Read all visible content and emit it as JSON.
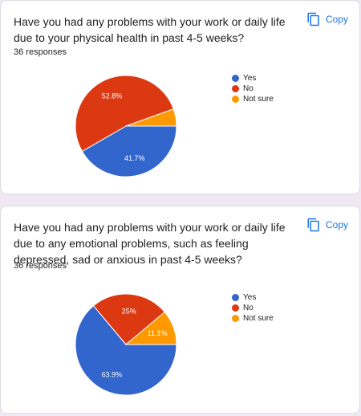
{
  "copy_label": "Copy",
  "colors": {
    "Yes": "#3366cc",
    "No": "#dc3912",
    "Not sure": "#ff9900"
  },
  "cards": [
    {
      "question": "Have you had any problems with your work or daily life due to your physical health in past 4-5 weeks?",
      "responses": "36 responses"
    },
    {
      "question": "Have you had any problems with your work or daily life due to any emotional problems, such as feeling depressed, sad or anxious in past 4-5 weeks?",
      "responses": "36 responses"
    }
  ],
  "chart_data": [
    {
      "type": "pie",
      "categories": [
        "Yes",
        "No",
        "Not sure"
      ],
      "values": [
        41.7,
        52.8,
        5.5
      ],
      "labels": [
        "41.7%",
        "52.8%",
        ""
      ],
      "legend_position": "right"
    },
    {
      "type": "pie",
      "categories": [
        "Yes",
        "No",
        "Not sure"
      ],
      "values": [
        63.9,
        25,
        11.1
      ],
      "labels": [
        "63.9%",
        "25%",
        "11.1%"
      ],
      "legend_position": "right"
    }
  ]
}
